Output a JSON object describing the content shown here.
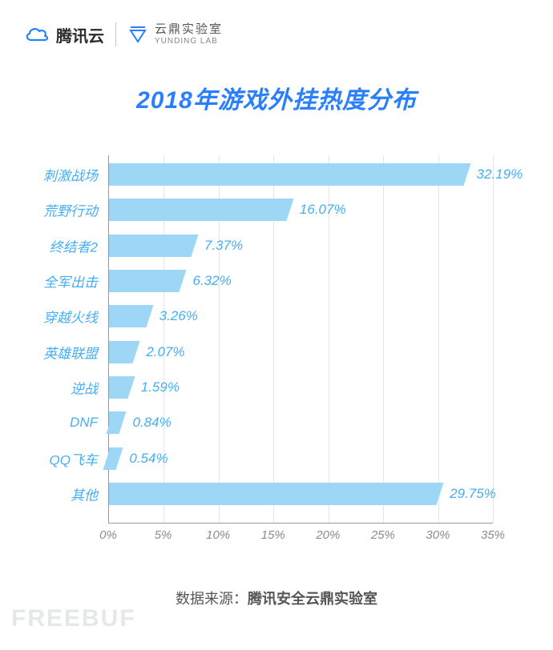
{
  "header": {
    "tencent_cloud": "腾讯云",
    "yunding_cn": "云鼎实验室",
    "yunding_en": "YUNDING LAB"
  },
  "title": {
    "text": "2018年游戏外挂热度分布",
    "fontsize": 30,
    "color": "#2a7fff",
    "weight": 700
  },
  "chart": {
    "type": "bar-horizontal",
    "xmin": 0,
    "xmax": 35,
    "xtick_step": 5,
    "xtick_suffix": "%",
    "bar_color": "#9ed6f6",
    "value_label_color": "#46aef2",
    "y_label_color": "#46aef2",
    "tick_label_color": "#8b8b8b",
    "grid_color": "#e5e5e5",
    "axis_color": "#999999",
    "label_fontsize": 17,
    "tick_fontsize": 15,
    "categories": [
      "刺激战场",
      "荒野行动",
      "终结者2",
      "全军出击",
      "穿越火线",
      "英雄联盟",
      "逆战",
      "DNF",
      "QQ飞车",
      "其他"
    ],
    "values": [
      32.19,
      16.07,
      7.37,
      6.32,
      3.26,
      2.07,
      1.59,
      0.84,
      0.54,
      29.75
    ],
    "value_labels": [
      "32.19%",
      "16.07%",
      "7.37%",
      "6.32%",
      "3.26%",
      "2.07%",
      "1.59%",
      "0.84%",
      "0.54%",
      "29.75%"
    ]
  },
  "source": {
    "label": "数据来源：",
    "value": "腾讯安全云鼎实验室",
    "fontsize": 18,
    "color": "#555555"
  },
  "watermark": {
    "text": "FREEBUF",
    "color": "#e6e8e8",
    "fontsize": 30
  },
  "background_color": "#ffffff"
}
